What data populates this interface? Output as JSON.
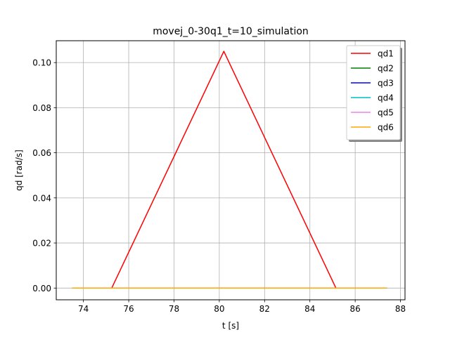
{
  "chart_data": {
    "type": "line",
    "title": "movej_0-30q1_t=10_simulation",
    "xlabel": "t [s]",
    "ylabel": "qd [rad/s]",
    "xlim": [
      72.8,
      88.2
    ],
    "ylim": [
      -0.0052,
      0.1097
    ],
    "xticks": [
      74,
      76,
      78,
      80,
      82,
      84,
      86,
      88
    ],
    "yticks": [
      0.0,
      0.02,
      0.04,
      0.06,
      0.08,
      0.1
    ],
    "ytick_labels": [
      "0.00",
      "0.02",
      "0.04",
      "0.06",
      "0.08",
      "0.10"
    ],
    "grid": true,
    "legend_position": "top-right",
    "series": [
      {
        "name": "qd1",
        "color": "#ff0000",
        "x": [
          73.5,
          75.25,
          80.2,
          85.15,
          87.4
        ],
        "y": [
          0.0,
          0.0,
          0.105,
          0.0,
          0.0
        ]
      },
      {
        "name": "qd2",
        "color": "#008000",
        "x": [
          73.5,
          87.4
        ],
        "y": [
          0.0,
          0.0
        ]
      },
      {
        "name": "qd3",
        "color": "#0000ff",
        "x": [
          73.5,
          87.4
        ],
        "y": [
          0.0,
          0.0
        ]
      },
      {
        "name": "qd4",
        "color": "#00bfbf",
        "x": [
          73.5,
          87.4
        ],
        "y": [
          0.0,
          0.0
        ]
      },
      {
        "name": "qd5",
        "color": "#ee82ee",
        "x": [
          73.5,
          87.4
        ],
        "y": [
          0.0,
          0.0
        ]
      },
      {
        "name": "qd6",
        "color": "#ffa500",
        "x": [
          73.5,
          87.4
        ],
        "y": [
          0.0,
          0.0
        ]
      }
    ]
  }
}
